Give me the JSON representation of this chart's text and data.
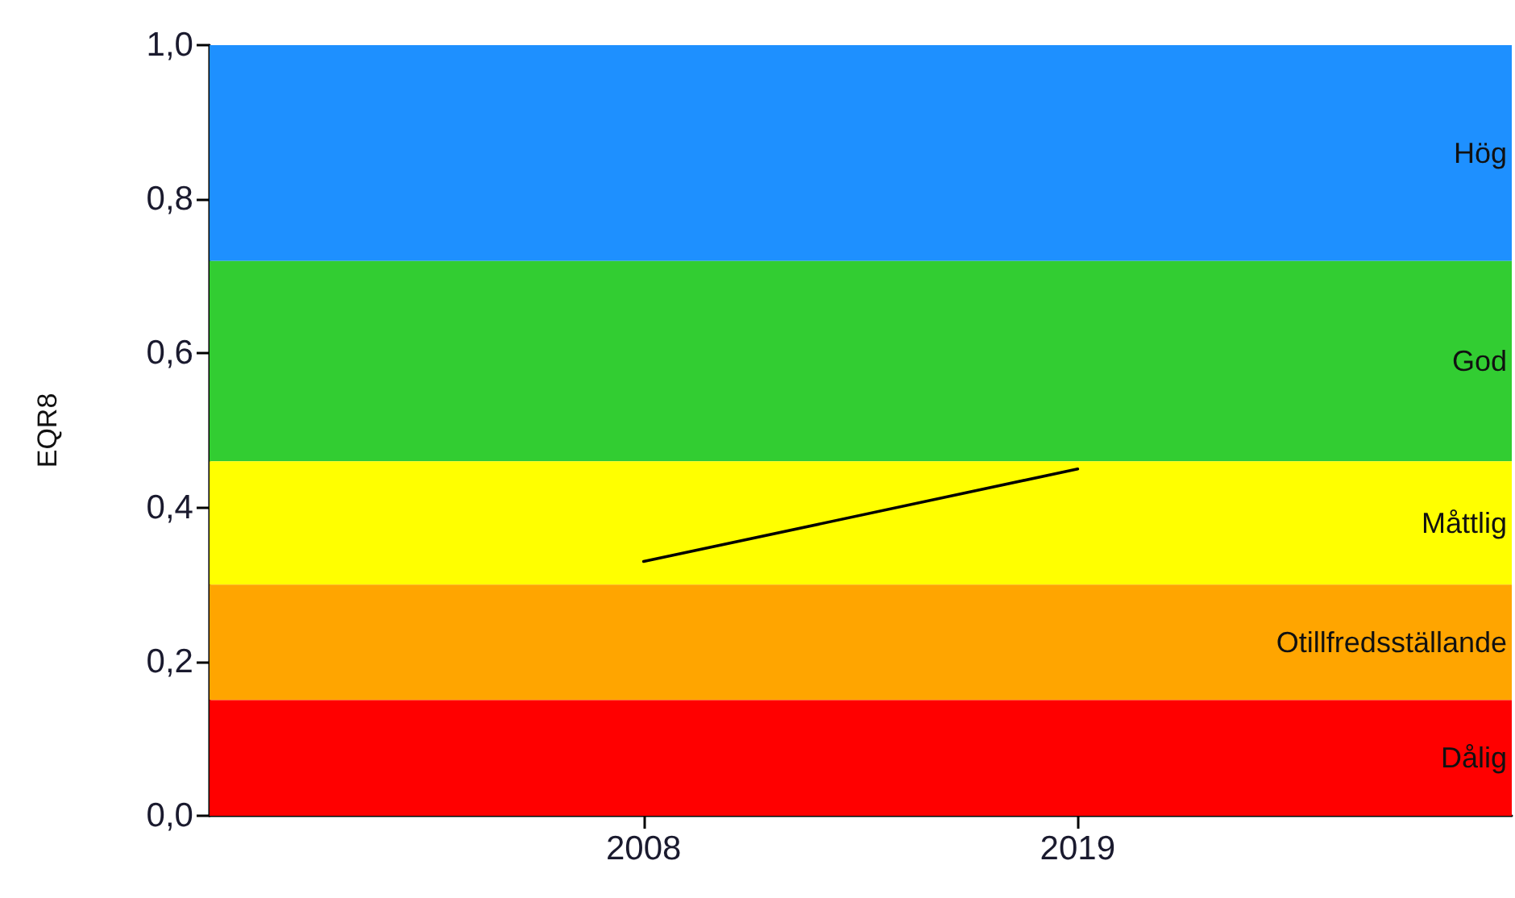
{
  "chart_data": {
    "type": "line",
    "ylabel": "EQR8",
    "x": [
      2008,
      2019
    ],
    "series": [
      {
        "color": "#000000",
        "values": [
          0.33,
          0.45
        ]
      }
    ],
    "xlim": [
      1997,
      2030
    ],
    "xticks": [
      2008,
      2019
    ],
    "ylim": [
      0,
      1
    ],
    "yticks": [
      {
        "value": 0,
        "label": "0,0"
      },
      {
        "value": 0.2,
        "label": "0,2"
      },
      {
        "value": 0.4,
        "label": "0,4"
      },
      {
        "value": 0.6,
        "label": "0,6"
      },
      {
        "value": 0.8,
        "label": "0,8"
      },
      {
        "value": 1,
        "label": "1,0"
      }
    ],
    "bands": [
      {
        "axis": "y",
        "from": 0.72,
        "to": 1,
        "label": "Hög",
        "color": "#1e90ff"
      },
      {
        "axis": "y",
        "from": 0.46,
        "to": 0.72,
        "label": "God",
        "color": "#32cd32"
      },
      {
        "axis": "y",
        "from": 0.3,
        "to": 0.46,
        "label": "Måttlig",
        "color": "#ffff00"
      },
      {
        "axis": "y",
        "from": 0.15,
        "to": 0.3,
        "label": "Otillfredsställande",
        "color": "#ffa500"
      },
      {
        "axis": "y",
        "from": 0,
        "to": 0.15,
        "label": "Dålig",
        "color": "#ff0000"
      }
    ],
    "grid": false,
    "marker": "none",
    "line_style": "solid"
  }
}
